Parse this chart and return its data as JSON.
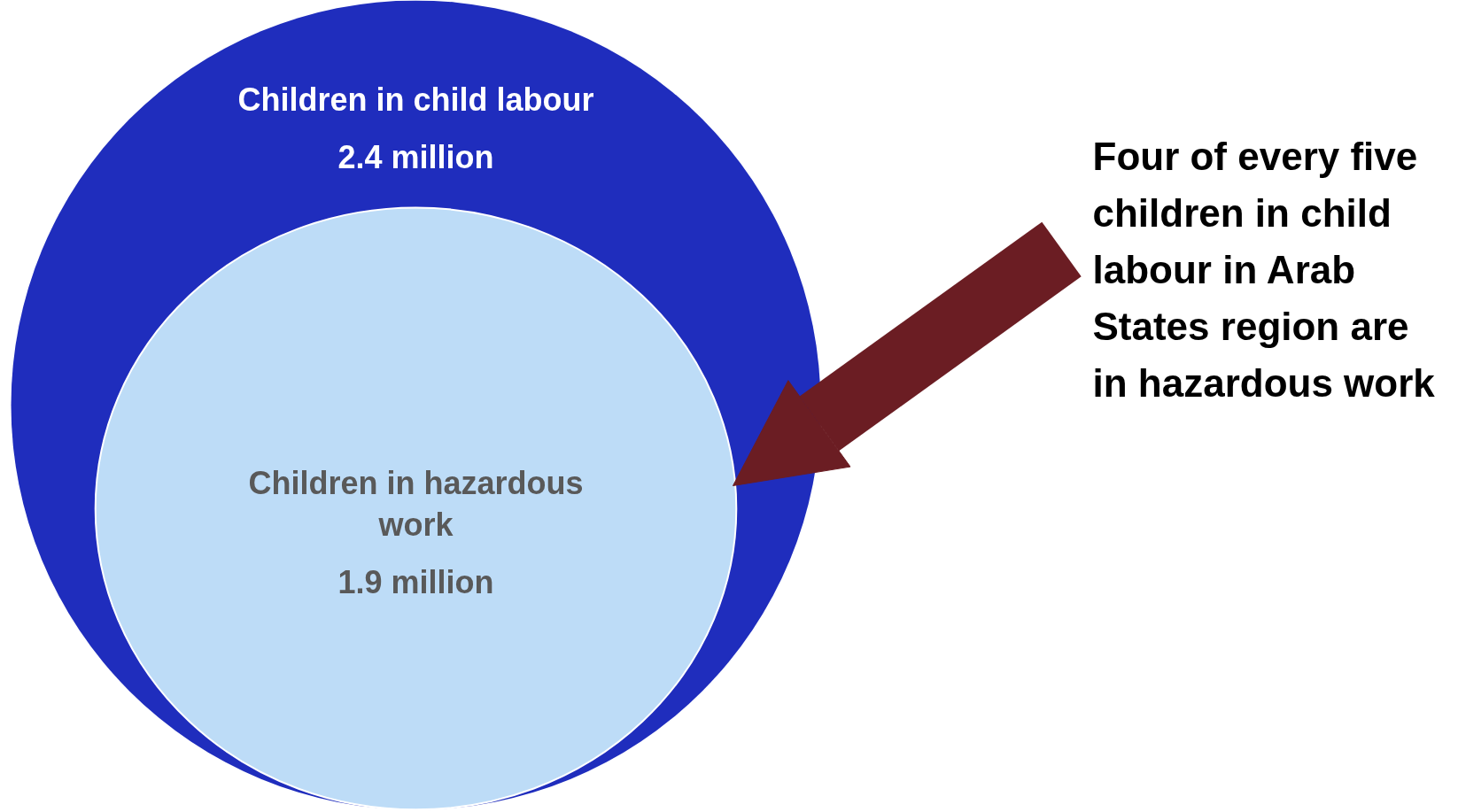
{
  "chart_data": {
    "type": "other",
    "categories": [
      "Children in child labour",
      "Children in hazardous work"
    ],
    "values": [
      2.4,
      1.9
    ],
    "value_labels": [
      "2.4 million",
      "1.9 million"
    ],
    "colors": [
      "#1f2dbd",
      "#bddcf7"
    ],
    "annotations": [
      "Four of every five children in child labour in Arab States region are in hazardous work"
    ]
  }
}
